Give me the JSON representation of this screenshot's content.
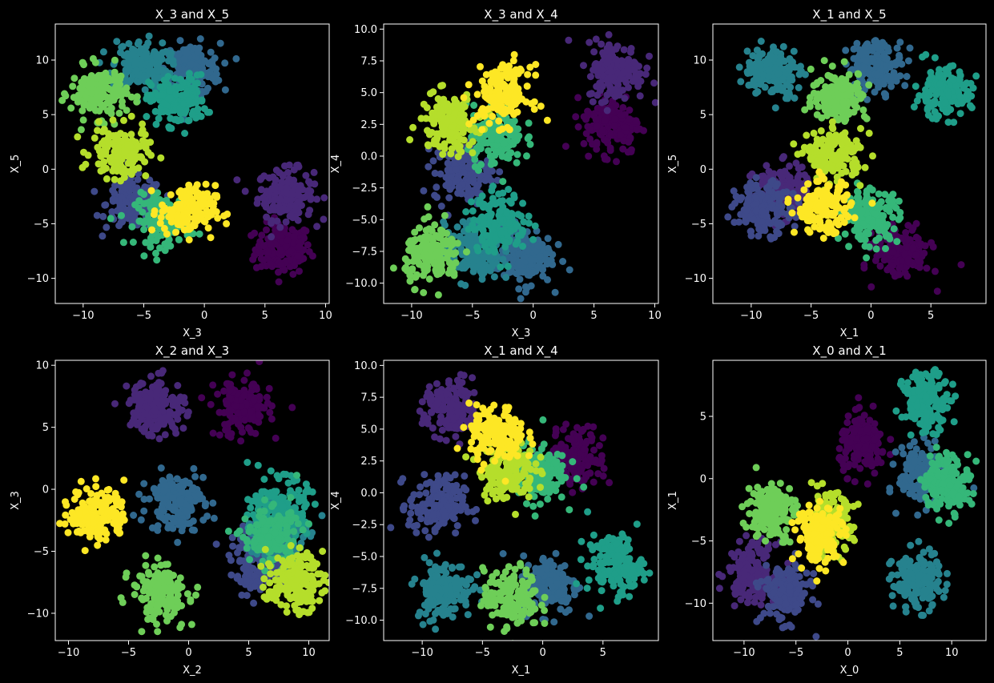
{
  "figure": {
    "background": "#000000",
    "foreground": "#ffffff",
    "cluster_colors": [
      "#440154",
      "#482878",
      "#3e4989",
      "#31688e",
      "#26828e",
      "#1f9e89",
      "#35b779",
      "#6ece58",
      "#b5de2b",
      "#fde725"
    ]
  },
  "chart_data": [
    {
      "type": "scatter",
      "title": "X_3 and X_5",
      "xlabel": "X_3",
      "ylabel": "X_5",
      "xlim": [
        -12.3,
        10.3
      ],
      "ylim": [
        -12.3,
        13.3
      ],
      "xticks": [
        -10,
        -5,
        0,
        5,
        10
      ],
      "yticks": [
        -10,
        -5,
        0,
        5,
        10
      ],
      "tick_labels_x": [
        "−10",
        "−5",
        "0",
        "5",
        "10"
      ],
      "tick_labels_y": [
        "−10",
        "−5",
        "0",
        "5",
        "10"
      ],
      "clusters": [
        {
          "cluster": 0,
          "center": [
            6.5,
            -7.3
          ]
        },
        {
          "cluster": 1,
          "center": [
            6.7,
            -2.3
          ]
        },
        {
          "cluster": 2,
          "center": [
            -5.8,
            -3.2
          ]
        },
        {
          "cluster": 3,
          "center": [
            -1.0,
            9.2
          ]
        },
        {
          "cluster": 4,
          "center": [
            -5.3,
            9.5
          ]
        },
        {
          "cluster": 5,
          "center": [
            -2.2,
            6.3
          ]
        },
        {
          "cluster": 6,
          "center": [
            -3.4,
            -4.7
          ]
        },
        {
          "cluster": 7,
          "center": [
            -8.7,
            7.0
          ]
        },
        {
          "cluster": 8,
          "center": [
            -7.0,
            1.5
          ]
        },
        {
          "cluster": 9,
          "center": [
            -1.4,
            -3.8
          ]
        }
      ]
    },
    {
      "type": "scatter",
      "title": "X_3 and X_4",
      "xlabel": "X_3",
      "ylabel": "X_4",
      "xlim": [
        -12.3,
        10.3
      ],
      "ylim": [
        -11.6,
        10.4
      ],
      "xticks": [
        -10,
        -5,
        0,
        5,
        10
      ],
      "yticks": [
        -10,
        -7.5,
        -5,
        -2.5,
        0,
        2.5,
        5,
        7.5,
        10
      ],
      "tick_labels_x": [
        "−10",
        "−5",
        "0",
        "5",
        "10"
      ],
      "tick_labels_y": [
        "−10.0",
        "−7.5",
        "−5.0",
        "−2.5",
        "0.0",
        "2.5",
        "5.0",
        "7.5",
        "10.0"
      ],
      "clusters": [
        {
          "cluster": 0,
          "center": [
            6.5,
            2.5
          ]
        },
        {
          "cluster": 1,
          "center": [
            6.8,
            6.7
          ]
        },
        {
          "cluster": 2,
          "center": [
            -5.8,
            -1.2
          ]
        },
        {
          "cluster": 3,
          "center": [
            -0.8,
            -7.8
          ]
        },
        {
          "cluster": 4,
          "center": [
            -5.0,
            -7.6
          ]
        },
        {
          "cluster": 5,
          "center": [
            -2.8,
            -5.2
          ]
        },
        {
          "cluster": 6,
          "center": [
            -3.2,
            1.6
          ]
        },
        {
          "cluster": 7,
          "center": [
            -8.2,
            -7.8
          ]
        },
        {
          "cluster": 8,
          "center": [
            -7.0,
            2.6
          ]
        },
        {
          "cluster": 9,
          "center": [
            -2.5,
            4.8
          ]
        }
      ]
    },
    {
      "type": "scatter",
      "title": "X_1 and X_5",
      "xlabel": "X_1",
      "ylabel": "X_5",
      "xlim": [
        -13.2,
        9.6
      ],
      "ylim": [
        -12.3,
        13.3
      ],
      "xticks": [
        -10,
        -5,
        0,
        5
      ],
      "yticks": [
        -10,
        -5,
        0,
        5,
        10
      ],
      "tick_labels_x": [
        "−10",
        "−5",
        "0",
        "5"
      ],
      "tick_labels_y": [
        "−10",
        "−5",
        "0",
        "5",
        "10"
      ],
      "clusters": [
        {
          "cluster": 0,
          "center": [
            2.6,
            -7.7
          ]
        },
        {
          "cluster": 1,
          "center": [
            -7.5,
            -2.0
          ]
        },
        {
          "cluster": 2,
          "center": [
            -9.0,
            -3.6
          ]
        },
        {
          "cluster": 3,
          "center": [
            0.4,
            9.5
          ]
        },
        {
          "cluster": 4,
          "center": [
            -8.2,
            9.0
          ]
        },
        {
          "cluster": 5,
          "center": [
            6.0,
            7.0
          ]
        },
        {
          "cluster": 6,
          "center": [
            0.0,
            -4.3
          ]
        },
        {
          "cluster": 7,
          "center": [
            -2.6,
            6.7
          ]
        },
        {
          "cluster": 8,
          "center": [
            -3.0,
            1.3
          ]
        },
        {
          "cluster": 9,
          "center": [
            -4.0,
            -3.5
          ]
        }
      ]
    },
    {
      "type": "scatter",
      "title": "X_2 and X_3",
      "xlabel": "X_2",
      "ylabel": "X_3",
      "xlim": [
        -11.1,
        11.7
      ],
      "ylim": [
        -12.2,
        10.4
      ],
      "xticks": [
        -10,
        -5,
        0,
        5,
        10
      ],
      "yticks": [
        -10,
        -5,
        0,
        5,
        10
      ],
      "tick_labels_x": [
        "−10",
        "−5",
        "0",
        "5",
        "10"
      ],
      "tick_labels_y": [
        "−10",
        "−5",
        "0",
        "5",
        "10"
      ],
      "clusters": [
        {
          "cluster": 0,
          "center": [
            4.5,
            6.5
          ]
        },
        {
          "cluster": 1,
          "center": [
            -2.6,
            6.6
          ]
        },
        {
          "cluster": 2,
          "center": [
            5.8,
            -5.8
          ]
        },
        {
          "cluster": 3,
          "center": [
            -1.0,
            -1.0
          ]
        },
        {
          "cluster": 4,
          "center": [
            7.3,
            -3.5
          ]
        },
        {
          "cluster": 5,
          "center": [
            7.6,
            -1.5
          ]
        },
        {
          "cluster": 6,
          "center": [
            6.8,
            -3.8
          ]
        },
        {
          "cluster": 7,
          "center": [
            -2.4,
            -8.3
          ]
        },
        {
          "cluster": 8,
          "center": [
            8.8,
            -7.5
          ]
        },
        {
          "cluster": 9,
          "center": [
            -7.6,
            -2.0
          ]
        }
      ]
    },
    {
      "type": "scatter",
      "title": "X_1 and X_4",
      "xlabel": "X_1",
      "ylabel": "X_4",
      "xlim": [
        -13.2,
        9.6
      ],
      "ylim": [
        -11.6,
        10.4
      ],
      "xticks": [
        -10,
        -5,
        0,
        5
      ],
      "yticks": [
        -10,
        -7.5,
        -5,
        -2.5,
        0,
        2.5,
        5,
        7.5,
        10
      ],
      "tick_labels_x": [
        "−10",
        "−5",
        "0",
        "5"
      ],
      "tick_labels_y": [
        "−10.0",
        "−7.5",
        "−5.0",
        "−2.5",
        "0.0",
        "2.5",
        "5.0",
        "7.5",
        "10.0"
      ],
      "clusters": [
        {
          "cluster": 0,
          "center": [
            2.8,
            2.8
          ]
        },
        {
          "cluster": 1,
          "center": [
            -7.5,
            6.5
          ]
        },
        {
          "cluster": 2,
          "center": [
            -8.8,
            -1.0
          ]
        },
        {
          "cluster": 3,
          "center": [
            0.6,
            -7.2
          ]
        },
        {
          "cluster": 4,
          "center": [
            -8.2,
            -7.6
          ]
        },
        {
          "cluster": 5,
          "center": [
            6.0,
            -5.6
          ]
        },
        {
          "cluster": 6,
          "center": [
            -0.4,
            1.6
          ]
        },
        {
          "cluster": 7,
          "center": [
            -2.6,
            -8.3
          ]
        },
        {
          "cluster": 8,
          "center": [
            -3.0,
            1.8
          ]
        },
        {
          "cluster": 9,
          "center": [
            -3.8,
            4.5
          ]
        }
      ]
    },
    {
      "type": "scatter",
      "title": "X_0 and X_1",
      "xlabel": "X_0",
      "ylabel": "X_1",
      "xlim": [
        -13.0,
        13.3
      ],
      "ylim": [
        -13.0,
        9.5
      ],
      "xticks": [
        -10,
        -5,
        0,
        5,
        10
      ],
      "yticks": [
        -10,
        -5,
        0,
        5
      ],
      "tick_labels_x": [
        "−10",
        "−5",
        "0",
        "5",
        "10"
      ],
      "tick_labels_y": [
        "−10",
        "−5",
        "0",
        "5"
      ],
      "clusters": [
        {
          "cluster": 0,
          "center": [
            1.5,
            2.7
          ]
        },
        {
          "cluster": 1,
          "center": [
            -9.2,
            -7.5
          ]
        },
        {
          "cluster": 2,
          "center": [
            -6.0,
            -9.2
          ]
        },
        {
          "cluster": 3,
          "center": [
            7.2,
            0.3
          ]
        },
        {
          "cluster": 4,
          "center": [
            6.6,
            -8.2
          ]
        },
        {
          "cluster": 5,
          "center": [
            7.6,
            6.2
          ]
        },
        {
          "cluster": 6,
          "center": [
            9.5,
            -0.2
          ]
        },
        {
          "cluster": 7,
          "center": [
            -7.4,
            -2.6
          ]
        },
        {
          "cluster": 8,
          "center": [
            -1.8,
            -3.6
          ]
        },
        {
          "cluster": 9,
          "center": [
            -2.6,
            -4.4
          ]
        }
      ]
    }
  ]
}
